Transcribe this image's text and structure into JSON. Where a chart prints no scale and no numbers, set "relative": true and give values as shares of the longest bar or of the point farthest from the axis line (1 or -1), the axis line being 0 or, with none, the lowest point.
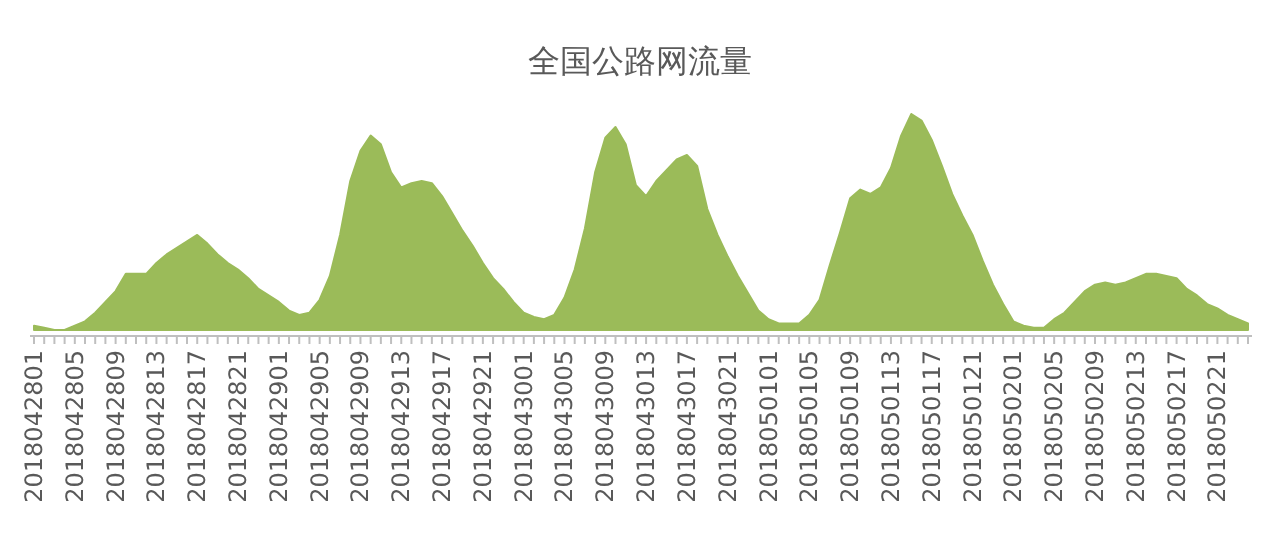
{
  "chart_data": {
    "type": "area",
    "title": "全国公路网流量",
    "relative": true,
    "color": "#9bbb59",
    "categories": [
      "2018042801",
      null,
      null,
      null,
      "2018042805",
      null,
      null,
      null,
      "2018042809",
      null,
      null,
      null,
      "2018042813",
      null,
      null,
      null,
      "2018042817",
      null,
      null,
      null,
      "2018042821",
      null,
      null,
      null,
      "2018042901",
      null,
      null,
      null,
      "2018042905",
      null,
      null,
      null,
      "2018042909",
      null,
      null,
      null,
      "2018042913",
      null,
      null,
      null,
      "2018042917",
      null,
      null,
      null,
      "2018042921",
      null,
      null,
      null,
      "2018043001",
      null,
      null,
      null,
      "2018043005",
      null,
      null,
      null,
      "2018043009",
      null,
      null,
      null,
      "2018043013",
      null,
      null,
      null,
      "2018043017",
      null,
      null,
      null,
      "2018043021",
      null,
      null,
      null,
      "2018050101",
      null,
      null,
      null,
      "2018050105",
      null,
      null,
      null,
      "2018050109",
      null,
      null,
      null,
      "2018050113",
      null,
      null,
      null,
      "2018050117",
      null,
      null,
      null,
      "2018050121",
      null,
      null,
      null,
      "2018050201",
      null,
      null,
      null,
      "2018050205",
      null,
      null,
      null,
      "2018050209",
      null,
      null,
      null,
      "2018050213",
      null,
      null,
      null,
      "2018050217",
      null,
      null,
      null,
      "2018050221",
      null,
      null,
      null
    ],
    "values": [
      0.02,
      0.01,
      0,
      0,
      0.02,
      0.04,
      0.08,
      0.13,
      0.18,
      0.26,
      0.26,
      0.26,
      0.31,
      0.35,
      0.38,
      0.41,
      0.44,
      0.4,
      0.35,
      0.31,
      0.28,
      0.24,
      0.19,
      0.16,
      0.13,
      0.09,
      0.07,
      0.08,
      0.14,
      0.25,
      0.44,
      0.69,
      0.83,
      0.9,
      0.86,
      0.73,
      0.66,
      0.68,
      0.69,
      0.68,
      0.62,
      0.54,
      0.46,
      0.39,
      0.31,
      0.24,
      0.19,
      0.13,
      0.08,
      0.06,
      0.05,
      0.07,
      0.15,
      0.28,
      0.47,
      0.73,
      0.89,
      0.94,
      0.86,
      0.67,
      0.62,
      0.69,
      0.74,
      0.79,
      0.81,
      0.76,
      0.56,
      0.44,
      0.34,
      0.25,
      0.17,
      0.09,
      0.05,
      0.03,
      0.03,
      0.03,
      0.07,
      0.14,
      0.3,
      0.45,
      0.61,
      0.65,
      0.63,
      0.66,
      0.75,
      0.9,
      1,
      0.97,
      0.88,
      0.76,
      0.63,
      0.53,
      0.44,
      0.32,
      0.21,
      0.12,
      0.04,
      0.02,
      0.01,
      0.01,
      0.05,
      0.08,
      0.13,
      0.18,
      0.21,
      0.22,
      0.21,
      0.22,
      0.24,
      0.26,
      0.26,
      0.25,
      0.24,
      0.19,
      0.16,
      0.12,
      0.1,
      0.07,
      0.05,
      0.03
    ]
  }
}
